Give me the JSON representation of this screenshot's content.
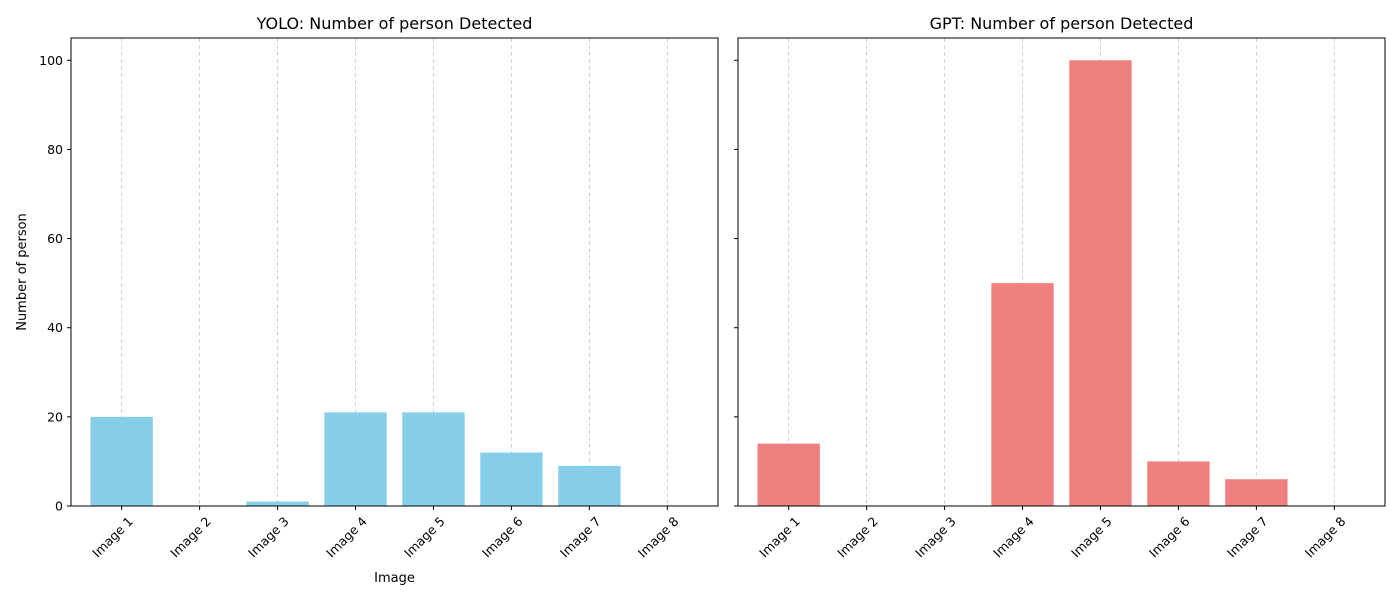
{
  "chart_data": [
    {
      "type": "bar",
      "title": "YOLO: Number of person Detected",
      "xlabel": "Image",
      "ylabel": "Number of person",
      "categories": [
        "Image 1",
        "Image 2",
        "Image 3",
        "Image 4",
        "Image 5",
        "Image 6",
        "Image 7",
        "Image 8"
      ],
      "values": [
        20,
        0,
        1,
        21,
        21,
        12,
        9,
        0
      ],
      "ylim": [
        0,
        105
      ],
      "yticks": [
        0,
        20,
        40,
        60,
        80,
        100
      ],
      "color": "#87ceeb",
      "grid": "x-dashed"
    },
    {
      "type": "bar",
      "title": "GPT: Number of person Detected",
      "xlabel": "",
      "ylabel": "",
      "categories": [
        "Image 1",
        "Image 2",
        "Image 3",
        "Image 4",
        "Image 5",
        "Image 6",
        "Image 7",
        "Image 8"
      ],
      "values": [
        14,
        0,
        0,
        50,
        100,
        10,
        6,
        0
      ],
      "ylim": [
        0,
        105
      ],
      "yticks": [
        0,
        20,
        40,
        60,
        80,
        100
      ],
      "color": "#f08080",
      "grid": "x-dashed"
    }
  ]
}
